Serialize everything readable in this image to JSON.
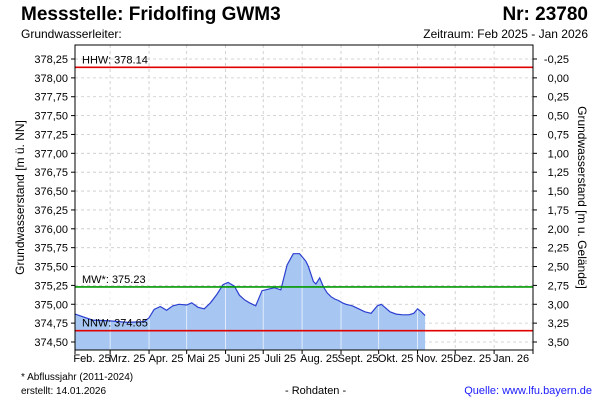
{
  "header": {
    "title": "Messstelle: Fridolfing GWM3",
    "number": "Nr: 23780",
    "aquifer": "Grundwasserleiter:",
    "period": "Zeitraum: Feb 2025 - Jan 2026"
  },
  "footer": {
    "footnote": "* Abflussjahr (2011-2024)",
    "created": "erstellt:  14.01.2026",
    "raw": "- Rohdaten -",
    "source": "Quelle: www.lfu.bayern.de"
  },
  "colors": {
    "fill": "#a7c7f2",
    "line": "#2b3fd0",
    "extreme": "#e00000",
    "mean": "#009900",
    "grid": "#c8c8c8"
  },
  "chart_data": {
    "type": "area",
    "ylabel_left": "Grundwasserstand [m ü. NN]",
    "ylabel_right": "Grundwasserstand [m u. Gelände]",
    "ylim": [
      374.4,
      378.3
    ],
    "yticks_left": [
      "378,25",
      "378,00",
      "377,75",
      "377,50",
      "377,25",
      "377,00",
      "376,75",
      "376,50",
      "376,25",
      "376,00",
      "375,75",
      "375,50",
      "375,25",
      "375,00",
      "374,75",
      "374,50"
    ],
    "yticks_right": [
      "-0,25",
      "0,00",
      "0,25",
      "0,50",
      "0,75",
      "1,00",
      "1,25",
      "1,50",
      "1,75",
      "2,00",
      "2,25",
      "2,50",
      "2,75",
      "3,00",
      "3,25",
      "3,50"
    ],
    "x_months": [
      "Feb. 25",
      "Mrz. 25",
      "Apr. 25",
      "Mai 25",
      "Juni 25",
      "Juli 25",
      "Aug. 25",
      "Sept. 25",
      "Okt. 25",
      "Nov. 25",
      "Dez. 25",
      "Jan. 26"
    ],
    "reference_lines": [
      {
        "label": "HHW: 378.14",
        "value": 378.14,
        "kind": "extreme"
      },
      {
        "label": "MW*: 375.23",
        "value": 375.23,
        "kind": "mean"
      },
      {
        "label": "NNW: 374.65",
        "value": 374.65,
        "kind": "extreme"
      }
    ],
    "series": [
      {
        "x": [
          "2025-02-01",
          "2025-02-15",
          "2025-03-01",
          "2025-03-15",
          "2025-03-28",
          "2025-04-01",
          "2025-04-05",
          "2025-04-10",
          "2025-04-15",
          "2025-04-20",
          "2025-04-25",
          "2025-05-01",
          "2025-05-05",
          "2025-05-10",
          "2025-05-15",
          "2025-05-20",
          "2025-05-25",
          "2025-05-30",
          "2025-06-03",
          "2025-06-08",
          "2025-06-12",
          "2025-06-16",
          "2025-06-20",
          "2025-06-25",
          "2025-06-30",
          "2025-07-05",
          "2025-07-10",
          "2025-07-15",
          "2025-07-20",
          "2025-07-25",
          "2025-07-30",
          "2025-08-04",
          "2025-08-06",
          "2025-08-08",
          "2025-08-10",
          "2025-08-12",
          "2025-08-15",
          "2025-08-18",
          "2025-08-21",
          "2025-08-24",
          "2025-08-27",
          "2025-08-30",
          "2025-09-02",
          "2025-09-05",
          "2025-09-10",
          "2025-09-15",
          "2025-09-20",
          "2025-09-25",
          "2025-09-30",
          "2025-10-03",
          "2025-10-06",
          "2025-10-10",
          "2025-10-15",
          "2025-10-20",
          "2025-10-25",
          "2025-10-29",
          "2025-11-01",
          "2025-11-04",
          "2025-11-07"
        ],
        "values": [
          374.87,
          374.79,
          374.78,
          374.76,
          374.77,
          374.82,
          374.93,
          374.97,
          374.92,
          374.98,
          375.0,
          374.99,
          375.02,
          374.96,
          374.94,
          375.02,
          375.13,
          375.26,
          375.29,
          375.24,
          375.12,
          375.06,
          375.02,
          374.98,
          375.18,
          375.2,
          375.22,
          375.19,
          375.52,
          375.67,
          375.67,
          375.57,
          375.5,
          375.4,
          375.3,
          375.27,
          375.35,
          375.23,
          375.15,
          375.1,
          375.07,
          375.05,
          375.02,
          375.0,
          374.98,
          374.94,
          374.9,
          374.88,
          374.98,
          375.0,
          374.96,
          374.9,
          374.87,
          374.86,
          374.86,
          374.88,
          374.94,
          374.9,
          374.85
        ]
      }
    ]
  }
}
